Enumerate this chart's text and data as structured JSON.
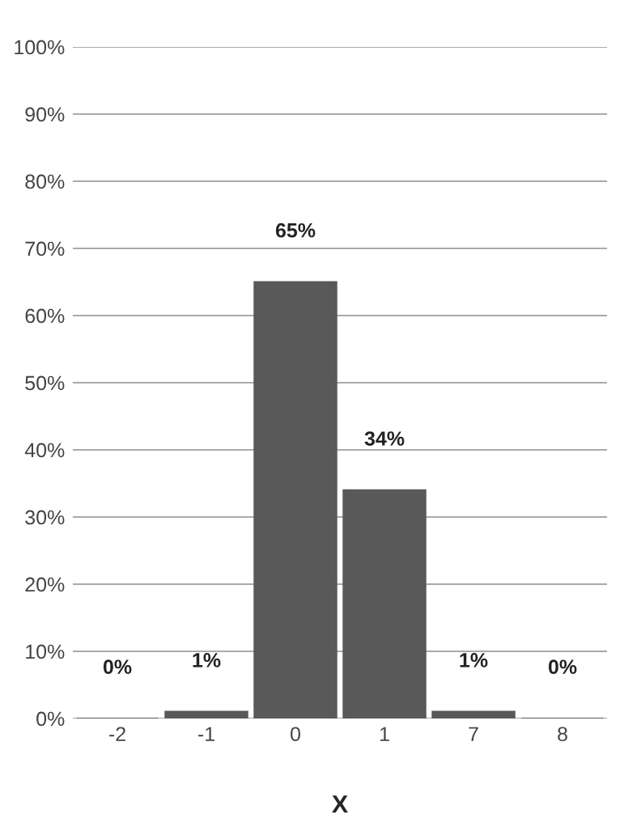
{
  "chart_data": {
    "type": "bar",
    "xlabel": "X",
    "categories": [
      "-2",
      "-1",
      "0",
      "1",
      "7",
      "8"
    ],
    "values": [
      0,
      1,
      65,
      34,
      1,
      0
    ],
    "value_labels": [
      "0%",
      "1%",
      "65%",
      "34%",
      "1%",
      "0%"
    ],
    "color": "#595959",
    "ylim": [
      0,
      100
    ],
    "yticks": [
      {
        "value": 0,
        "label": "0%"
      },
      {
        "value": 10,
        "label": "10%"
      },
      {
        "value": 20,
        "label": "20%"
      },
      {
        "value": 30,
        "label": "30%"
      },
      {
        "value": 40,
        "label": "40%"
      },
      {
        "value": 50,
        "label": "50%"
      },
      {
        "value": 60,
        "label": "60%"
      },
      {
        "value": 70,
        "label": "70%"
      },
      {
        "value": 80,
        "label": "80%"
      },
      {
        "value": 90,
        "label": "90%"
      },
      {
        "value": 100,
        "label": "100%"
      }
    ],
    "grid": "y"
  }
}
